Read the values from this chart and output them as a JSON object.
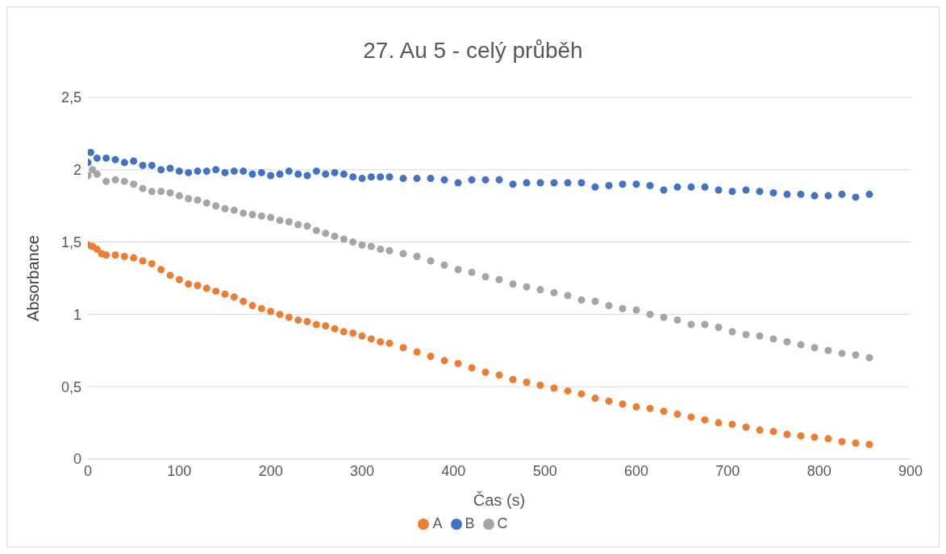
{
  "chart_data": {
    "type": "scatter",
    "title": "27. Au 5 - celý průběh",
    "xlabel": "Čas (s)",
    "ylabel": "Absorbance",
    "xlim": [
      0,
      900
    ],
    "xticks": [
      0,
      100,
      200,
      300,
      400,
      500,
      600,
      700,
      800,
      900
    ],
    "ylim": [
      0,
      2.5
    ],
    "yticks": [
      0,
      {
        "value": 0.5,
        "label": "0,5"
      },
      1,
      {
        "value": 1.5,
        "label": "1,5"
      },
      2,
      {
        "value": 2.5,
        "label": "2,5"
      }
    ],
    "grid": "y",
    "legend": "bottom",
    "marker": "circle",
    "series": [
      {
        "name": "A",
        "color": "#ed7d31",
        "x": [
          0,
          5,
          10,
          15,
          20,
          30,
          40,
          50,
          60,
          70,
          80,
          90,
          100,
          110,
          120,
          130,
          140,
          150,
          160,
          170,
          180,
          190,
          200,
          210,
          220,
          230,
          240,
          250,
          260,
          270,
          280,
          290,
          300,
          310,
          320,
          330,
          345,
          360,
          375,
          390,
          405,
          420,
          435,
          450,
          465,
          480,
          495,
          510,
          525,
          540,
          555,
          570,
          585,
          600,
          615,
          630,
          645,
          660,
          675,
          690,
          705,
          720,
          735,
          750,
          765,
          780,
          795,
          810,
          825,
          840,
          855
        ],
        "values": [
          1.48,
          1.47,
          1.45,
          1.42,
          1.41,
          1.41,
          1.4,
          1.39,
          1.37,
          1.35,
          1.31,
          1.27,
          1.24,
          1.21,
          1.2,
          1.18,
          1.16,
          1.14,
          1.12,
          1.09,
          1.06,
          1.04,
          1.02,
          1,
          0.98,
          0.96,
          0.95,
          0.93,
          0.92,
          0.9,
          0.88,
          0.87,
          0.85,
          0.83,
          0.81,
          0.8,
          0.77,
          0.74,
          0.71,
          0.68,
          0.66,
          0.63,
          0.6,
          0.58,
          0.55,
          0.53,
          0.51,
          0.49,
          0.47,
          0.45,
          0.42,
          0.4,
          0.38,
          0.36,
          0.35,
          0.33,
          0.31,
          0.29,
          0.27,
          0.25,
          0.24,
          0.22,
          0.2,
          0.19,
          0.17,
          0.16,
          0.15,
          0.14,
          0.12,
          0.11,
          0.1
        ]
      },
      {
        "name": "B",
        "color": "#4472c4",
        "x": [
          0,
          3,
          10,
          20,
          30,
          40,
          50,
          60,
          70,
          80,
          90,
          100,
          110,
          120,
          130,
          140,
          150,
          160,
          170,
          180,
          190,
          200,
          210,
          220,
          230,
          240,
          250,
          260,
          270,
          280,
          290,
          300,
          310,
          320,
          330,
          345,
          360,
          375,
          390,
          405,
          420,
          435,
          450,
          465,
          480,
          495,
          510,
          525,
          540,
          555,
          570,
          585,
          600,
          615,
          630,
          645,
          660,
          675,
          690,
          705,
          720,
          735,
          750,
          765,
          780,
          795,
          810,
          825,
          840,
          855
        ],
        "values": [
          2.05,
          2.12,
          2.08,
          2.08,
          2.07,
          2.05,
          2.06,
          2.03,
          2.03,
          2,
          2.01,
          1.99,
          1.98,
          1.99,
          1.99,
          2,
          1.98,
          1.99,
          1.99,
          1.97,
          1.98,
          1.96,
          1.97,
          1.99,
          1.97,
          1.96,
          1.99,
          1.97,
          1.98,
          1.97,
          1.95,
          1.94,
          1.95,
          1.95,
          1.95,
          1.94,
          1.94,
          1.94,
          1.93,
          1.91,
          1.93,
          1.93,
          1.93,
          1.9,
          1.91,
          1.91,
          1.91,
          1.91,
          1.91,
          1.88,
          1.89,
          1.9,
          1.9,
          1.89,
          1.86,
          1.88,
          1.88,
          1.88,
          1.86,
          1.85,
          1.86,
          1.85,
          1.84,
          1.83,
          1.83,
          1.82,
          1.82,
          1.83,
          1.81,
          1.83
        ]
      },
      {
        "name": "C",
        "color": "#a5a5a5",
        "x": [
          0,
          5,
          10,
          20,
          30,
          40,
          50,
          60,
          70,
          80,
          90,
          100,
          110,
          120,
          130,
          140,
          150,
          160,
          170,
          180,
          190,
          200,
          210,
          220,
          230,
          240,
          250,
          260,
          270,
          280,
          290,
          300,
          310,
          320,
          330,
          345,
          360,
          375,
          390,
          405,
          420,
          435,
          450,
          465,
          480,
          495,
          510,
          525,
          540,
          555,
          570,
          585,
          600,
          615,
          630,
          645,
          660,
          675,
          690,
          705,
          720,
          735,
          750,
          765,
          780,
          795,
          810,
          825,
          840,
          855
        ],
        "values": [
          1.96,
          2,
          1.97,
          1.92,
          1.93,
          1.92,
          1.9,
          1.87,
          1.85,
          1.85,
          1.84,
          1.82,
          1.8,
          1.79,
          1.77,
          1.75,
          1.73,
          1.72,
          1.7,
          1.69,
          1.68,
          1.67,
          1.65,
          1.64,
          1.62,
          1.61,
          1.58,
          1.56,
          1.54,
          1.52,
          1.5,
          1.48,
          1.47,
          1.45,
          1.44,
          1.42,
          1.4,
          1.37,
          1.34,
          1.31,
          1.29,
          1.26,
          1.24,
          1.21,
          1.19,
          1.17,
          1.15,
          1.13,
          1.1,
          1.09,
          1.06,
          1.04,
          1.03,
          1,
          0.98,
          0.96,
          0.93,
          0.93,
          0.91,
          0.88,
          0.86,
          0.85,
          0.83,
          0.81,
          0.79,
          0.77,
          0.75,
          0.73,
          0.72,
          0.7
        ]
      }
    ]
  }
}
